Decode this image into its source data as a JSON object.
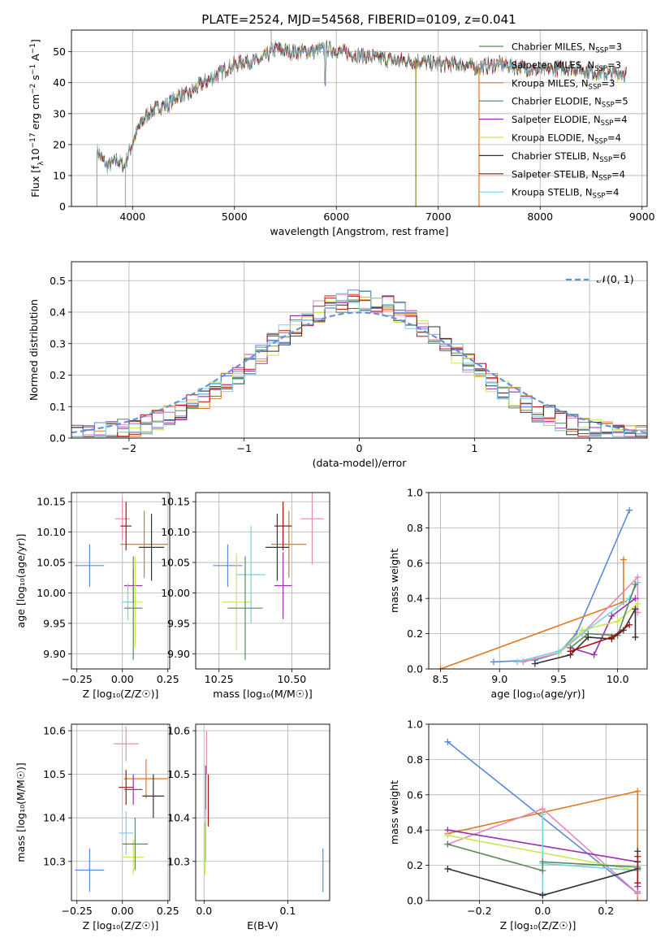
{
  "title": "PLATE=2524, MJD=54568, FIBERID=0109, z=0.041",
  "series_colors": [
    "#5a8a5a",
    "#999aa0",
    "#e07a1a",
    "#4a8080",
    "#9a30b0",
    "#c8e850",
    "#333333",
    "#aa1010",
    "#7ad0e0"
  ],
  "fit_colors": {
    "Chabrier MILES": "#5a8a5a",
    "Salpeter MILES": "#e888b8",
    "Kroupa MILES": "#e07a1a",
    "Chabrier ELODIE": "#5a8a5a",
    "Salpeter ELODIE": "#9a30b0",
    "Kroupa ELODIE": "#c8e850",
    "Chabrier STELIB": "#333333",
    "Salpeter STELIB": "#aa1010",
    "Kroupa STELIB": "#7ad0e0",
    "extra": "#5b8ad8"
  },
  "chart_data": [
    {
      "id": "spectrum",
      "type": "line",
      "title": "PLATE=2524, MJD=54568, FIBERID=0109, z=0.041",
      "xlabel": "wavelength [Angstrom, rest frame]",
      "ylabel_parts": [
        "Flux [f",
        "λ",
        "10",
        "−17",
        " erg cm",
        "−2",
        " s",
        "−1",
        " A",
        "−1",
        "]"
      ],
      "xlim": [
        3400,
        9050
      ],
      "ylim": [
        0,
        57
      ],
      "xticks": [
        4000,
        5000,
        6000,
        7000,
        8000,
        9000
      ],
      "yticks": [
        0,
        10,
        20,
        30,
        40,
        50
      ],
      "x_start": 3650,
      "x_end": 8850,
      "legend_position": "upper-right",
      "legend": [
        {
          "main": "Chabrier MILES, N",
          "sub": "SSP",
          "tail": "=3"
        },
        {
          "main": "Salpeter MILES, N",
          "sub": "SSP",
          "tail": "=3"
        },
        {
          "main": "Kroupa MILES, N",
          "sub": "SSP",
          "tail": "=3"
        },
        {
          "main": "Chabrier ELODIE, N",
          "sub": "SSP",
          "tail": "=5"
        },
        {
          "main": "Salpeter ELODIE, N",
          "sub": "SSP",
          "tail": "=4"
        },
        {
          "main": "Kroupa ELODIE, N",
          "sub": "SSP",
          "tail": "=4"
        },
        {
          "main": "Chabrier STELIB, N",
          "sub": "SSP",
          "tail": "=6"
        },
        {
          "main": "Salpeter STELIB, N",
          "sub": "SSP",
          "tail": "=4"
        },
        {
          "main": "Kroupa STELIB, N",
          "sub": "SSP",
          "tail": "=4"
        }
      ],
      "envelope": [
        [
          3650,
          18
        ],
        [
          3750,
          13
        ],
        [
          3850,
          15
        ],
        [
          3920,
          13
        ],
        [
          3960,
          17
        ],
        [
          4050,
          25
        ],
        [
          4150,
          30
        ],
        [
          4250,
          32
        ],
        [
          4350,
          33
        ],
        [
          4450,
          36
        ],
        [
          4550,
          36
        ],
        [
          4650,
          39
        ],
        [
          4750,
          41
        ],
        [
          4850,
          43
        ],
        [
          4950,
          45
        ],
        [
          5100,
          47
        ],
        [
          5250,
          47
        ],
        [
          5400,
          51
        ],
        [
          5550,
          50
        ],
        [
          5700,
          50
        ],
        [
          5900,
          51
        ],
        [
          6050,
          50
        ],
        [
          6200,
          49
        ],
        [
          6400,
          48
        ],
        [
          6600,
          47
        ],
        [
          6800,
          47
        ],
        [
          7000,
          46
        ],
        [
          7200,
          46
        ],
        [
          7400,
          45
        ],
        [
          7600,
          46
        ],
        [
          7800,
          45
        ],
        [
          8000,
          44
        ],
        [
          8300,
          45
        ],
        [
          8600,
          43
        ],
        [
          8850,
          43
        ]
      ],
      "spikes": [
        [
          3650,
          0
        ],
        [
          3930,
          0
        ],
        [
          5360,
          57
        ],
        [
          6780,
          0
        ],
        [
          7400,
          0
        ]
      ]
    },
    {
      "id": "residuals",
      "type": "histogram",
      "xlabel": "(data-model)/error",
      "ylabel": "Normed distribution",
      "xlim": [
        -2.5,
        2.5
      ],
      "ylim": [
        0,
        0.56
      ],
      "xticks": [
        -2,
        -1,
        0,
        1,
        2
      ],
      "yticks": [
        0.0,
        0.1,
        0.2,
        0.3,
        0.4,
        0.5
      ],
      "bin_width": 0.1,
      "reference_curve": {
        "label": "𝒩(0, 1)",
        "mean": 0,
        "sigma": 1
      }
    },
    {
      "id": "age-vs-Z",
      "type": "errorbar",
      "xlabel": "Z [log₁₀(Z/Z☉)]",
      "ylabel": "age  [log₁₀(age/yr)]",
      "xlim": [
        -0.28,
        0.26
      ],
      "ylim": [
        9.875,
        10.165
      ],
      "xticks": [
        -0.25,
        0.0,
        0.25
      ],
      "yticks": [
        9.9,
        9.95,
        10.0,
        10.05,
        10.1,
        10.15
      ],
      "points": [
        {
          "x": -0.18,
          "y": 10.045,
          "xerr": 0.08,
          "yerr": 0.035,
          "c": "#5b8ad8"
        },
        {
          "x": 0.0,
          "y": 10.122,
          "xerr": 0.04,
          "yerr": 0.035,
          "c": "#e888b8"
        },
        {
          "x": 0.12,
          "y": 10.08,
          "xerr": 0.13,
          "yerr": 0.055,
          "c": "#e07a1a"
        },
        {
          "x": 0.02,
          "y": 10.11,
          "xerr": 0.03,
          "yerr": 0.04,
          "c": "#aa1010"
        },
        {
          "x": 0.16,
          "y": 10.075,
          "xerr": 0.07,
          "yerr": 0.055,
          "c": "#333333"
        },
        {
          "x": 0.06,
          "y": 10.012,
          "xerr": 0.05,
          "yerr": 0.028,
          "c": "#9a30b0"
        },
        {
          "x": 0.07,
          "y": 9.985,
          "xerr": 0.04,
          "yerr": 0.075,
          "c": "#c8e850"
        },
        {
          "x": 0.03,
          "y": 9.985,
          "xerr": 0.03,
          "yerr": 0.03,
          "c": "#7ad0e0"
        },
        {
          "x": 0.06,
          "y": 9.975,
          "xerr": 0.05,
          "yerr": 0.085,
          "c": "#5a8a5a"
        }
      ]
    },
    {
      "id": "age-vs-mass",
      "type": "errorbar",
      "xlabel": "mass [log₁₀(M/M☉)]",
      "xlim": [
        10.17,
        10.63
      ],
      "ylim": [
        9.875,
        10.165
      ],
      "xticks": [
        10.25,
        10.5
      ],
      "yticks": [
        9.9,
        9.95,
        10.0,
        10.05,
        10.1,
        10.15
      ],
      "points": [
        {
          "x": 10.28,
          "y": 10.045,
          "xerr": 0.05,
          "yerr": 0.035,
          "c": "#5b8ad8"
        },
        {
          "x": 10.57,
          "y": 10.122,
          "xerr": 0.04,
          "yerr": 0.075,
          "c": "#e888b8"
        },
        {
          "x": 10.49,
          "y": 10.08,
          "xerr": 0.06,
          "yerr": 0.055,
          "c": "#e07a1a"
        },
        {
          "x": 10.47,
          "y": 10.11,
          "xerr": 0.03,
          "yerr": 0.04,
          "c": "#aa1010"
        },
        {
          "x": 10.45,
          "y": 10.075,
          "xerr": 0.04,
          "yerr": 0.055,
          "c": "#333333"
        },
        {
          "x": 10.47,
          "y": 10.012,
          "xerr": 0.03,
          "yerr": 0.055,
          "c": "#9a30b0"
        },
        {
          "x": 10.31,
          "y": 9.985,
          "xerr": 0.05,
          "yerr": 0.08,
          "c": "#c8e850"
        },
        {
          "x": 10.36,
          "y": 10.03,
          "xerr": 0.05,
          "yerr": 0.08,
          "c": "#7ad0e0"
        },
        {
          "x": 10.34,
          "y": 9.975,
          "xerr": 0.06,
          "yerr": 0.085,
          "c": "#5a8a5a"
        }
      ]
    },
    {
      "id": "mass-weight-vs-age",
      "type": "line",
      "xlabel": "age  [log₁₀(age/yr)]",
      "ylabel": "mass weight",
      "xlim": [
        8.4,
        10.25
      ],
      "ylim": [
        0,
        1.0
      ],
      "xticks": [
        8.5,
        9.0,
        9.5,
        10.0
      ],
      "yticks": [
        0.0,
        0.2,
        0.4,
        0.6,
        0.8,
        1.0
      ],
      "series": [
        {
          "c": "#5b8ad8",
          "x": [
            8.95,
            9.3,
            9.5,
            9.65,
            10.1
          ],
          "y": [
            0.04,
            0.05,
            0.09,
            0.2,
            0.9
          ]
        },
        {
          "c": "#e07a1a",
          "x": [
            8.5,
            10.05,
            10.05
          ],
          "y": [
            0.0,
            0.38,
            0.62
          ]
        },
        {
          "c": "#e888b8",
          "x": [
            9.2,
            9.5,
            9.7,
            10.17,
            10.17
          ],
          "y": [
            0.04,
            0.09,
            0.2,
            0.52,
            0.32
          ]
        },
        {
          "c": "#9a30b0",
          "x": [
            9.6,
            9.8,
            9.95,
            10.15
          ],
          "y": [
            0.12,
            0.08,
            0.3,
            0.4
          ]
        },
        {
          "c": "#c8e850",
          "x": [
            9.5,
            9.7,
            10.0,
            10.17
          ],
          "y": [
            0.09,
            0.22,
            0.27,
            0.37
          ]
        },
        {
          "c": "#7ad0e0",
          "x": [
            9.15,
            9.5,
            10.1,
            10.17
          ],
          "y": [
            0.04,
            0.1,
            0.4,
            0.49
          ]
        },
        {
          "c": "#5a8a5a",
          "x": [
            9.6,
            9.75,
            10.0,
            10.15
          ],
          "y": [
            0.12,
            0.2,
            0.19,
            0.48
          ]
        },
        {
          "c": "#333333",
          "x": [
            9.3,
            9.6,
            9.75,
            9.95,
            10.05,
            10.15,
            10.15
          ],
          "y": [
            0.03,
            0.08,
            0.18,
            0.17,
            0.22,
            0.34,
            0.18
          ]
        },
        {
          "c": "#aa1010",
          "x": [
            9.6,
            9.95,
            10.1
          ],
          "y": [
            0.1,
            0.18,
            0.25
          ]
        }
      ]
    },
    {
      "id": "mass-vs-Z",
      "type": "errorbar",
      "xlabel": "Z [log₁₀(Z/Z☉)]",
      "ylabel": "mass [log₁₀(M/M☉)]",
      "xlim": [
        -0.28,
        0.26
      ],
      "ylim": [
        10.21,
        10.615
      ],
      "xticks": [
        -0.25,
        0.0,
        0.25
      ],
      "yticks": [
        10.3,
        10.4,
        10.5,
        10.6
      ],
      "points": [
        {
          "x": -0.18,
          "y": 10.28,
          "xerr": 0.08,
          "yerr": 0.05,
          "c": "#5b8ad8"
        },
        {
          "x": 0.02,
          "y": 10.57,
          "xerr": 0.07,
          "yerr": 0.04,
          "c": "#e888b8"
        },
        {
          "x": 0.13,
          "y": 10.49,
          "xerr": 0.12,
          "yerr": 0.045,
          "c": "#e07a1a"
        },
        {
          "x": 0.02,
          "y": 10.47,
          "xerr": 0.04,
          "yerr": 0.04,
          "c": "#aa1010"
        },
        {
          "x": 0.17,
          "y": 10.45,
          "xerr": 0.06,
          "yerr": 0.05,
          "c": "#333333"
        },
        {
          "x": 0.06,
          "y": 10.465,
          "xerr": 0.05,
          "yerr": 0.035,
          "c": "#9a30b0"
        },
        {
          "x": 0.06,
          "y": 10.31,
          "xerr": 0.06,
          "yerr": 0.04,
          "c": "#c8e850"
        },
        {
          "x": 0.02,
          "y": 10.365,
          "xerr": 0.04,
          "yerr": 0.05,
          "c": "#7ad0e0"
        },
        {
          "x": 0.07,
          "y": 10.34,
          "xerr": 0.07,
          "yerr": 0.06,
          "c": "#5a8a5a"
        }
      ]
    },
    {
      "id": "mass-vs-ebv",
      "type": "errorbar",
      "xlabel": "E(B-V)",
      "xlim": [
        -0.01,
        0.15
      ],
      "ylim": [
        10.21,
        10.615
      ],
      "xticks": [
        0.0,
        0.1
      ],
      "yticks": [
        10.3,
        10.4,
        10.5,
        10.6
      ],
      "points": [
        {
          "x": 0.142,
          "y": 10.28,
          "xerr": 0.0,
          "yerr": 0.05,
          "c": "#5b8ad8"
        },
        {
          "x": 0.003,
          "y": 10.55,
          "xerr": 0.0,
          "yerr": 0.05,
          "c": "#e888b8"
        },
        {
          "x": 0.005,
          "y": 10.44,
          "xerr": 0.0,
          "yerr": 0.06,
          "c": "#aa1010"
        },
        {
          "x": 0.002,
          "y": 10.46,
          "xerr": 0.0,
          "yerr": 0.06,
          "c": "#9a30b0"
        },
        {
          "x": 0.001,
          "y": 10.33,
          "xerr": 0.0,
          "yerr": 0.06,
          "c": "#c8e850"
        },
        {
          "x": 0.002,
          "y": 10.36,
          "xerr": 0.0,
          "yerr": 0.06,
          "c": "#7ad0e0"
        }
      ]
    },
    {
      "id": "mass-weight-vs-Z",
      "type": "line",
      "xlabel": "Z [log₁₀(Z/Z☉)]",
      "ylabel": "mass weight",
      "xlim": [
        -0.36,
        0.33
      ],
      "ylim": [
        0,
        1.0
      ],
      "xticks": [
        -0.2,
        0.0,
        0.2
      ],
      "yticks": [
        0.0,
        0.2,
        0.4,
        0.6,
        0.8,
        1.0
      ],
      "series": [
        {
          "c": "#5b8ad8",
          "x": [
            -0.3,
            0.3,
            0.3
          ],
          "y": [
            0.9,
            0.04,
            0.05
          ]
        },
        {
          "c": "#e07a1a",
          "x": [
            -0.3,
            0.3,
            0.3
          ],
          "y": [
            0.38,
            0.62,
            0.0
          ]
        },
        {
          "c": "#e888b8",
          "x": [
            -0.3,
            0.0,
            0.3
          ],
          "y": [
            0.32,
            0.52,
            0.04
          ]
        },
        {
          "c": "#9a30b0",
          "x": [
            -0.3,
            0.3,
            0.3
          ],
          "y": [
            0.4,
            0.22,
            0.08
          ]
        },
        {
          "c": "#c8e850",
          "x": [
            -0.3,
            0.3
          ],
          "y": [
            0.37,
            0.17
          ]
        },
        {
          "c": "#7ad0e0",
          "x": [
            0.0,
            0.0,
            0.0,
            0.3
          ],
          "y": [
            0.49,
            0.04,
            0.21,
            0.17
          ]
        },
        {
          "c": "#5a8a5a",
          "x": [
            -0.3,
            0.0,
            0.0,
            0.3
          ],
          "y": [
            0.32,
            0.17,
            0.22,
            0.19
          ]
        },
        {
          "c": "#333333",
          "x": [
            -0.3,
            0.0,
            0.3,
            0.3,
            0.3
          ],
          "y": [
            0.18,
            0.03,
            0.18,
            0.28,
            0.22
          ]
        },
        {
          "c": "#aa1010",
          "x": [
            0.3,
            0.3
          ],
          "y": [
            0.25,
            0.1
          ]
        }
      ]
    }
  ]
}
